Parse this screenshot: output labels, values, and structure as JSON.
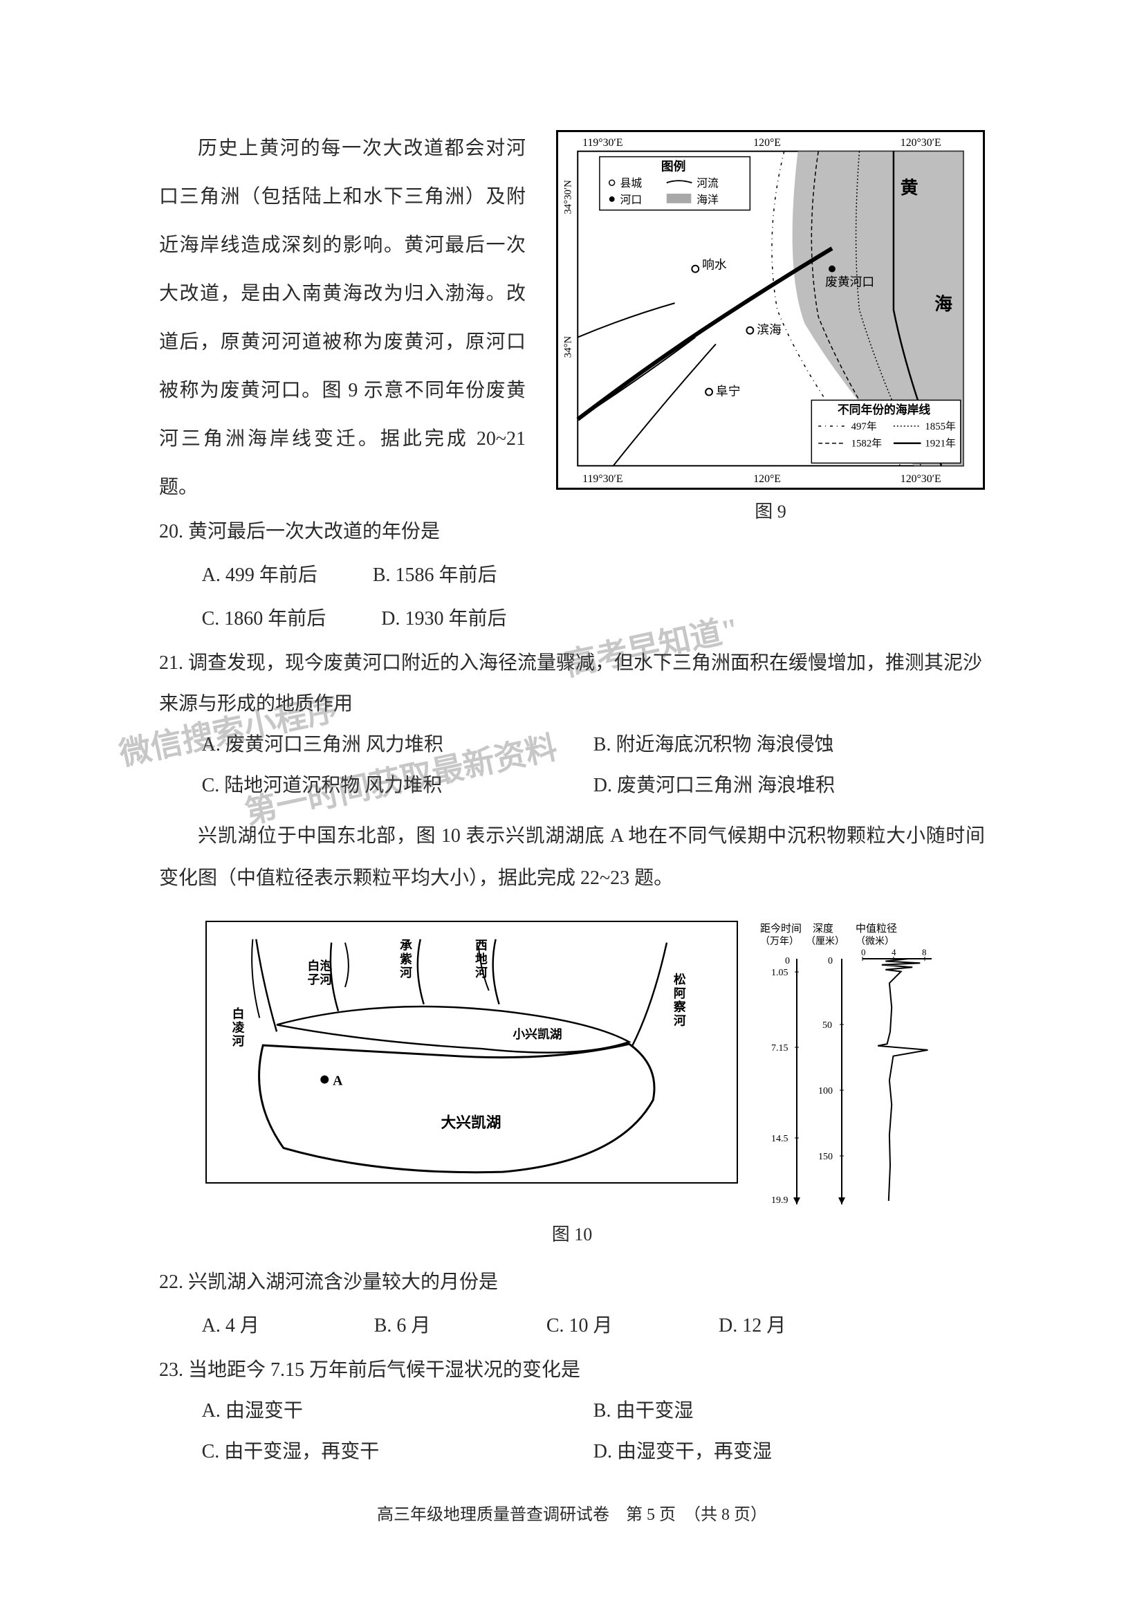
{
  "passage1": "历史上黄河的每一次大改道都会对河口三角洲（包括陆上和水下三角洲）及附近海岸线造成深刻的影响。黄河最后一次大改道，是由入南黄海改为归入渤海。改道后，原黄河河道被称为废黄河，原河口被称为废黄河口。图 9 示意不同年份废黄河三角洲海岸线变迁。据此完成 20~21 题。",
  "figure9": {
    "caption": "图 9",
    "legend_title": "图例",
    "legend_items": {
      "county": "县城",
      "river": "河流",
      "mouth": "河口",
      "ocean": "海洋"
    },
    "coastline_title": "不同年份的海岸线",
    "coastline_years": [
      "497年",
      "1855年",
      "1582年",
      "1921年"
    ],
    "lon_labels": [
      "119°30′E",
      "120°E",
      "120°30′E"
    ],
    "lat_labels": [
      "34°30′N",
      "34°N"
    ],
    "places": {
      "xiangshui": "响水",
      "binhai": "滨海",
      "funing": "阜宁",
      "feihuanghe": "废黄河口",
      "huang": "黄",
      "hai": "海"
    },
    "colors": {
      "border": "#000000",
      "ocean_fill": "#9a9a9a",
      "line": "#1a1a1a"
    }
  },
  "q20": {
    "stem": "20. 黄河最后一次大改道的年份是",
    "options": {
      "A": "A. 499 年前后",
      "B": "B. 1586 年前后",
      "C": "C. 1860 年前后",
      "D": "D. 1930 年前后"
    }
  },
  "q21": {
    "stem": "21. 调查发现，现今废黄河口附近的入海径流量骤减，但水下三角洲面积在缓慢增加，推测其泥沙来源与形成的地质作用",
    "options": {
      "A": "A. 废黄河口三角洲 风力堆积",
      "B": "B. 附近海底沉积物 海浪侵蚀",
      "C": "C. 陆地河道沉积物 风力堆积",
      "D": "D. 废黄河口三角洲 海浪堆积"
    }
  },
  "passage2": "兴凯湖位于中国东北部，图 10 表示兴凯湖湖底 A 地在不同气候期中沉积物颗粒大小随时间变化图（中值粒径表示颗粒平均大小），据此完成 22~23 题。",
  "watermarks": {
    "w1": "\"高考早知道\"",
    "w2": "微信搜索小程序",
    "w3": "第一时间获取最新资料"
  },
  "figure10": {
    "caption": "图 10",
    "map": {
      "rivers": {
        "bailing": "白凌河",
        "baipaozi": "白泡子河",
        "chengzi": "承紫河",
        "xidi": "西地河",
        "songacha": "松阿察河"
      },
      "lakes": {
        "xiao": "小兴凯湖",
        "da": "大兴凯湖"
      },
      "point_A": "A"
    },
    "chart": {
      "header_time": "距今时间",
      "header_time_unit": "（万年）",
      "header_depth": "深度",
      "header_depth_unit": "（厘米）",
      "header_grain": "中值粒径",
      "header_grain_unit": "（微米）",
      "grain_ticks": [
        "0",
        "4",
        "8"
      ],
      "time_ticks": [
        "0",
        "1.05",
        "7.15",
        "14.5",
        "19.9"
      ],
      "depth_ticks": [
        "0",
        "50",
        "100",
        "150"
      ],
      "series_points": [
        {
          "t": 0.0,
          "g": 6.0
        },
        {
          "t": 0.2,
          "g": 3.0
        },
        {
          "t": 0.35,
          "g": 7.5
        },
        {
          "t": 0.5,
          "g": 2.5
        },
        {
          "t": 0.7,
          "g": 6.5
        },
        {
          "t": 0.9,
          "g": 3.0
        },
        {
          "t": 1.05,
          "g": 5.0
        },
        {
          "t": 2.0,
          "g": 3.5
        },
        {
          "t": 4.0,
          "g": 3.8
        },
        {
          "t": 6.0,
          "g": 3.6
        },
        {
          "t": 7.0,
          "g": 3.2
        },
        {
          "t": 7.15,
          "g": 2.0
        },
        {
          "t": 7.5,
          "g": 8.5
        },
        {
          "t": 8.0,
          "g": 4.0
        },
        {
          "t": 10.0,
          "g": 3.5
        },
        {
          "t": 12.0,
          "g": 3.8
        },
        {
          "t": 14.5,
          "g": 3.5
        },
        {
          "t": 17.0,
          "g": 3.6
        },
        {
          "t": 19.9,
          "g": 3.4
        }
      ],
      "time_range": [
        0,
        19.9
      ],
      "grain_range": [
        0,
        9
      ],
      "depth_range": [
        0,
        160
      ],
      "colors": {
        "axis": "#000000",
        "line": "#000000"
      }
    }
  },
  "q22": {
    "stem": "22. 兴凯湖入湖河流含沙量较大的月份是",
    "options": {
      "A": "A. 4 月",
      "B": "B. 6 月",
      "C": "C. 10 月",
      "D": "D. 12 月"
    }
  },
  "q23": {
    "stem": "23. 当地距今 7.15 万年前后气候干湿状况的变化是",
    "options": {
      "A": "A. 由湿变干",
      "B": "B. 由干变湿",
      "C": "C. 由干变湿，再变干",
      "D": "D. 由湿变干，再变湿"
    }
  },
  "footer": "高三年级地理质量普查调研试卷　第 5 页　（共 8 页）"
}
